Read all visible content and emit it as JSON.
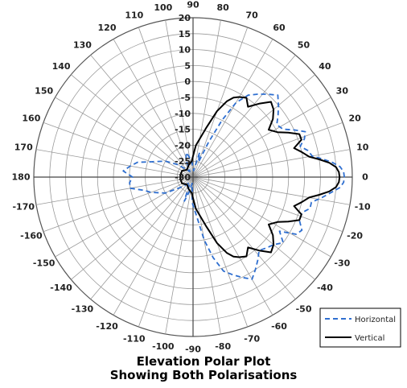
{
  "chart_data": {
    "type": "polar-line",
    "title_line1": "Elevation Polar Plot",
    "title_line2": "Showing Both Polarisations",
    "angle_ticks": [
      0,
      10,
      20,
      30,
      40,
      50,
      60,
      70,
      80,
      90,
      100,
      110,
      120,
      130,
      140,
      150,
      160,
      170,
      180,
      -170,
      -160,
      -150,
      -140,
      -130,
      -120,
      -110,
      -100,
      -90,
      -80,
      -70,
      -60,
      -50,
      -40,
      -30,
      -20,
      -10
    ],
    "radial_ticks": [
      20,
      15,
      10,
      5,
      0,
      -5,
      -10,
      -15,
      -20,
      -25,
      -30
    ],
    "radial_range": [
      -30,
      20
    ],
    "grid": true,
    "legend_position": "bottom-right",
    "series": [
      {
        "name": "Horizontal",
        "style": "dashed",
        "color": "#2f6fd0",
        "points": [
          [
            0,
            17.5
          ],
          [
            2,
            17.3
          ],
          [
            4,
            16.3
          ],
          [
            6,
            14
          ],
          [
            8,
            11
          ],
          [
            10,
            8
          ],
          [
            13,
            7
          ],
          [
            16,
            5
          ],
          [
            19,
            7
          ],
          [
            22,
            8
          ],
          [
            25,
            5
          ],
          [
            28,
            2
          ],
          [
            32,
            1
          ],
          [
            36,
            3
          ],
          [
            40,
            5
          ],
          [
            44,
            7
          ],
          [
            48,
            5
          ],
          [
            52,
            3
          ],
          [
            56,
            1
          ],
          [
            60,
            -3
          ],
          [
            63,
            -10
          ],
          [
            66,
            -18
          ],
          [
            70,
            -25
          ],
          [
            75,
            -22
          ],
          [
            85,
            -28
          ],
          [
            95,
            -25
          ],
          [
            105,
            -22
          ],
          [
            112,
            -24
          ],
          [
            120,
            -28
          ],
          [
            140,
            -24
          ],
          [
            150,
            -20
          ],
          [
            160,
            -16
          ],
          [
            165,
            -12
          ],
          [
            170,
            -10
          ],
          [
            175,
            -8
          ],
          [
            180,
            -11
          ],
          [
            185,
            -10
          ],
          [
            190,
            -10
          ],
          [
            195,
            -14
          ],
          [
            200,
            -16
          ],
          [
            210,
            -20
          ],
          [
            220,
            -25
          ],
          [
            240,
            -28
          ],
          [
            250,
            -22
          ],
          [
            255,
            -25
          ],
          [
            262,
            -28
          ],
          [
            268,
            -22
          ],
          [
            275,
            -18
          ],
          [
            280,
            -10
          ],
          [
            284,
            -4
          ],
          [
            288,
            1
          ],
          [
            292,
            3
          ],
          [
            296,
            5
          ],
          [
            300,
            7
          ],
          [
            304,
            5
          ],
          [
            308,
            3
          ],
          [
            312,
            1
          ],
          [
            316,
            2
          ],
          [
            320,
            3
          ],
          [
            324,
            5
          ],
          [
            328,
            2
          ],
          [
            331,
            7
          ],
          [
            334,
            8
          ],
          [
            338,
            6
          ],
          [
            342,
            6
          ],
          [
            345,
            8
          ],
          [
            348,
            8
          ],
          [
            351,
            11
          ],
          [
            354,
            14
          ],
          [
            356,
            16.3
          ],
          [
            358,
            17.3
          ],
          [
            360,
            17.5
          ]
        ]
      },
      {
        "name": "Vertical",
        "style": "solid",
        "color": "#000000",
        "points": [
          [
            0,
            16
          ],
          [
            2,
            15.8
          ],
          [
            4,
            15
          ],
          [
            6,
            13
          ],
          [
            8,
            10
          ],
          [
            10,
            7
          ],
          [
            13,
            5
          ],
          [
            16,
            3
          ],
          [
            19,
            6
          ],
          [
            22,
            6
          ],
          [
            25,
            3
          ],
          [
            28,
            0
          ],
          [
            32,
            -2
          ],
          [
            36,
            1
          ],
          [
            40,
            3
          ],
          [
            44,
            4
          ],
          [
            48,
            1
          ],
          [
            52,
            -2
          ],
          [
            56,
            0
          ],
          [
            60,
            -1
          ],
          [
            63,
            -2
          ],
          [
            66,
            -4
          ],
          [
            70,
            -8
          ],
          [
            75,
            -14
          ],
          [
            85,
            -20
          ],
          [
            95,
            -25
          ],
          [
            110,
            -26
          ],
          [
            130,
            -27
          ],
          [
            150,
            -26
          ],
          [
            170,
            -26
          ],
          [
            180,
            -26
          ],
          [
            190,
            -26
          ],
          [
            210,
            -26
          ],
          [
            230,
            -27
          ],
          [
            250,
            -26
          ],
          [
            265,
            -25
          ],
          [
            275,
            -20
          ],
          [
            285,
            -14
          ],
          [
            290,
            -8
          ],
          [
            294,
            -4
          ],
          [
            297,
            -2
          ],
          [
            300,
            -1
          ],
          [
            304,
            0
          ],
          [
            308,
            -2
          ],
          [
            312,
            1
          ],
          [
            316,
            4
          ],
          [
            320,
            3
          ],
          [
            324,
            1
          ],
          [
            328,
            -2
          ],
          [
            332,
            0
          ],
          [
            335,
            3
          ],
          [
            338,
            6
          ],
          [
            341,
            6
          ],
          [
            344,
            3
          ],
          [
            347,
            5
          ],
          [
            350,
            7
          ],
          [
            352,
            10
          ],
          [
            354,
            13
          ],
          [
            356,
            15
          ],
          [
            358,
            15.8
          ],
          [
            360,
            16
          ]
        ]
      }
    ]
  }
}
